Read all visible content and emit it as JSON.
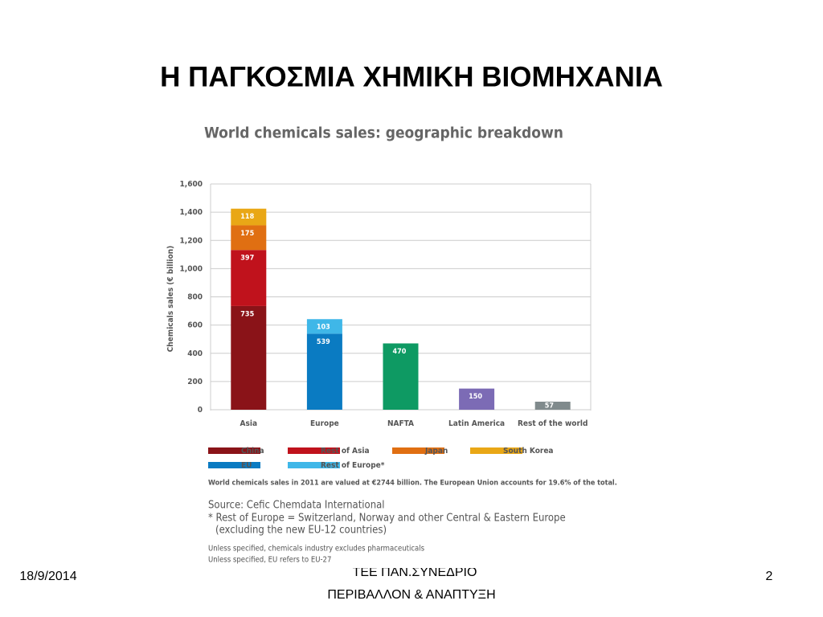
{
  "slide": {
    "title": "Η ΠΑΓΚΟΣΜΙΑ ΧΗΜΙΚΗ ΒΙΟΜΗΧΑΝΙΑ",
    "date": "18/9/2014",
    "footer": [
      "ΤΕΕ ΠΑΝ.ΣΥΝΕΔΡΙΟ",
      "ΠΕΡΙΒΑΛΛΟΝ & ΑΝΑΠΤΥΞΗ"
    ],
    "page": "2"
  },
  "chart_data": {
    "type": "bar",
    "stacked": true,
    "title": "World chemicals sales: geographic breakdown",
    "y_label": "Chemicals sales (€ billion)",
    "categories": [
      "Asia",
      "Europe",
      "NAFTA",
      "Latin America",
      "Rest of the world"
    ],
    "series": [
      {
        "name": "China",
        "color": "#8a1318",
        "values": [
          735,
          null,
          null,
          null,
          null
        ]
      },
      {
        "name": "Rest of Asia",
        "color": "#c0121c",
        "values": [
          397,
          null,
          null,
          null,
          null
        ]
      },
      {
        "name": "Japan",
        "color": "#e06f12",
        "values": [
          175,
          null,
          null,
          null,
          null
        ]
      },
      {
        "name": "South Korea",
        "color": "#e9a716",
        "values": [
          118,
          null,
          null,
          null,
          null
        ]
      },
      {
        "name": "EU",
        "color": "#0a7bc2",
        "values": [
          null,
          539,
          null,
          null,
          null
        ]
      },
      {
        "name": "Rest of Europe*",
        "color": "#3fb7e8",
        "values": [
          null,
          103,
          null,
          null,
          null
        ]
      },
      {
        "colors": [
          "#888888",
          "#888888",
          "#0e9a63",
          "#7c6bb5",
          "#808a8c"
        ],
        "values": [
          null,
          null,
          470,
          150,
          57
        ]
      }
    ],
    "ylim": [
      0,
      1600
    ],
    "yticks": [
      0,
      200,
      400,
      600,
      800,
      {
        "value": 1000,
        "label": "1,000"
      },
      {
        "value": 1200,
        "label": "1,200"
      },
      {
        "value": 1400,
        "label": "1,400"
      },
      {
        "value": 1600,
        "label": "1,600"
      }
    ],
    "grid": true,
    "notes": [
      "World chemicals sales in 2011 are valued at €2744 billion. The European Union accounts for 19.6% of the total.",
      "Source: Cefic Chemdata International",
      "* Rest of Europe = Switzerland, Norway and other Central & Eastern Europe",
      "(excluding the new EU-12 countries)",
      "Unless specified, chemicals industry excludes pharmaceuticals",
      "Unless specified, EU refers to EU-27"
    ]
  }
}
